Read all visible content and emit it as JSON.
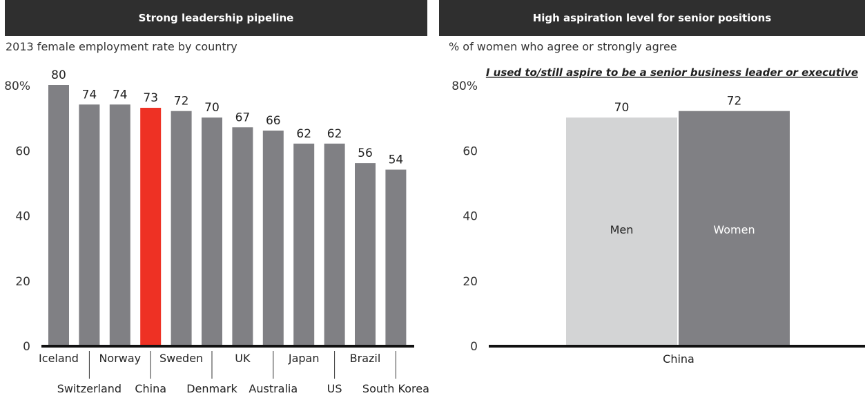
{
  "left_panel": {
    "header": "Strong leadership pipeline",
    "subtitle": "2013 female employment rate by country"
  },
  "right_panel": {
    "header": "High aspiration level for senior positions",
    "subtitle": "% of women who agree or strongly agree"
  },
  "colors": {
    "bar_default": "#808084",
    "bar_highlight": "#ee3124",
    "bar_men": "#d3d4d5",
    "bar_women": "#808084",
    "header_bg": "#2f2f2f"
  },
  "chart_data": [
    {
      "type": "bar",
      "title": "2013 female employment rate by country",
      "categories": [
        "Iceland",
        "Switzerland",
        "Norway",
        "China",
        "Sweden",
        "Denmark",
        "UK",
        "Australia",
        "Japan",
        "US",
        "Brazil",
        "South Korea"
      ],
      "values": [
        80,
        74,
        74,
        73,
        72,
        70,
        67,
        66,
        62,
        62,
        56,
        54
      ],
      "highlight": "China",
      "data_labels": [
        "80",
        "74",
        "74",
        "73",
        "72",
        "70",
        "67",
        "66",
        "62",
        "62",
        "56",
        "54"
      ],
      "yticks": [
        "0",
        "20",
        "40",
        "60",
        "80%"
      ],
      "ylim": [
        0,
        80
      ],
      "grid": false
    },
    {
      "type": "bar",
      "title": "I used to/still aspire to be a senior business leader or executive",
      "categories": [
        "China"
      ],
      "series": [
        {
          "name": "Men",
          "values": [
            70
          ]
        },
        {
          "name": "Women",
          "values": [
            72
          ]
        }
      ],
      "data_labels": [
        "70",
        "72"
      ],
      "yticks": [
        "0",
        "20",
        "40",
        "60",
        "80%"
      ],
      "ylim": [
        0,
        80
      ],
      "grid": false
    }
  ]
}
